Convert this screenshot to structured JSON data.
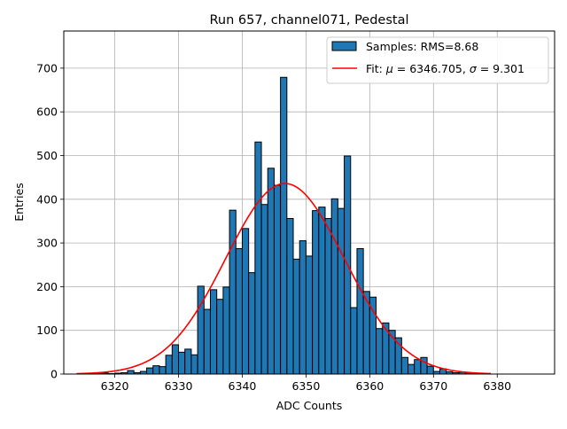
{
  "chart_data": {
    "type": "bar",
    "title": "Run 657, channel071, Pedestal",
    "xlabel": "ADC Counts",
    "ylabel": "Entries",
    "xlim": [
      6312.0,
      6389.0
    ],
    "ylim": [
      0,
      785
    ],
    "xticks": [
      6320,
      6330,
      6340,
      6350,
      6360,
      6370,
      6380
    ],
    "yticks": [
      0,
      100,
      200,
      300,
      400,
      500,
      600,
      700
    ],
    "grid": true,
    "legend_position": "top-right",
    "bin_width": 1,
    "histogram": {
      "name": "Samples: RMS=8.68",
      "color": "#1f77b4",
      "edgecolor": "#000000",
      "bin_left_edges": [
        6317,
        6318,
        6319,
        6320,
        6321,
        6322,
        6323,
        6324,
        6325,
        6326,
        6327,
        6328,
        6329,
        6330,
        6331,
        6332,
        6333,
        6334,
        6335,
        6336,
        6337,
        6338,
        6339,
        6340,
        6341,
        6342,
        6343,
        6344,
        6345,
        6346,
        6347,
        6348,
        6349,
        6350,
        6351,
        6352,
        6353,
        6354,
        6355,
        6356,
        6357,
        6358,
        6359,
        6360,
        6361,
        6362,
        6363,
        6364,
        6365,
        6366,
        6367,
        6368,
        6369,
        6370,
        6371,
        6372,
        6373,
        6374,
        6375,
        6376
      ],
      "counts": [
        1,
        2,
        1,
        2,
        3,
        8,
        3,
        6,
        14,
        19,
        17,
        43,
        67,
        50,
        57,
        44,
        201,
        148,
        193,
        171,
        199,
        375,
        287,
        333,
        232,
        531,
        388,
        471,
        432,
        679,
        356,
        263,
        305,
        270,
        374,
        382,
        356,
        401,
        379,
        499,
        152,
        287,
        189,
        176,
        104,
        117,
        100,
        83,
        38,
        22,
        33,
        38,
        18,
        6,
        12,
        5,
        3,
        4,
        2,
        1
      ]
    },
    "fit": {
      "name": "Fit: $\\mu$ = 6346.705, $\\sigma$ = 9.301",
      "mu": 6346.705,
      "sigma": 9.301,
      "amplitude": 436,
      "x_range": [
        6314,
        6379
      ],
      "color": "#ff0000"
    },
    "legend": {
      "samples_label": "Samples: RMS=8.68",
      "fit_prefix": "Fit: ",
      "mu_symbol": "μ",
      "mu_text": " = 6346.705, ",
      "sigma_symbol": "σ",
      "sigma_text": " = 9.301"
    }
  }
}
